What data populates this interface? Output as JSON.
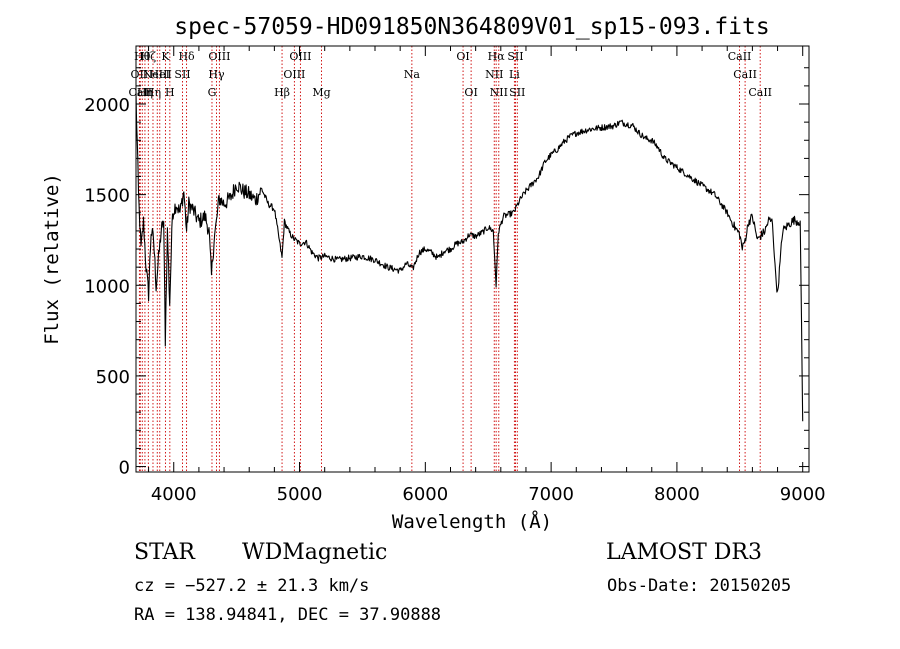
{
  "chart_data": {
    "type": "line",
    "title": "spec-57059-HD091850N364809V01_sp15-093.fits",
    "xlabel": "Wavelength (Å)",
    "ylabel": "Flux (relative)",
    "xlim": [
      3700,
      9050
    ],
    "ylim": [
      -30,
      2320
    ],
    "xticks": [
      4000,
      5000,
      6000,
      7000,
      8000,
      9000
    ],
    "yticks": [
      0,
      500,
      1000,
      1500,
      2000
    ],
    "grid": false,
    "series": [
      {
        "x": [
          3700,
          3720,
          3740,
          3760,
          3780,
          3800,
          3820,
          3840,
          3860,
          3880,
          3900,
          3920,
          3933,
          3950,
          3968,
          3990,
          4020,
          4050,
          4080,
          4102,
          4120,
          4150,
          4200,
          4250,
          4280,
          4300,
          4320,
          4340,
          4360,
          4400,
          4450,
          4500,
          4550,
          4600,
          4650,
          4700,
          4750,
          4800,
          4861,
          4880,
          4920,
          4950,
          5000,
          5050,
          5100,
          5150,
          5200,
          5300,
          5400,
          5500,
          5600,
          5700,
          5800,
          5850,
          5900,
          5950,
          6000,
          6050,
          6100,
          6150,
          6200,
          6250,
          6300,
          6350,
          6400,
          6450,
          6500,
          6540,
          6563,
          6580,
          6620,
          6700,
          6760,
          6800,
          6850,
          6900,
          6950,
          7000,
          7050,
          7100,
          7150,
          7200,
          7300,
          7400,
          7500,
          7550,
          7600,
          7650,
          7700,
          7750,
          7800,
          7850,
          7900,
          8000,
          8100,
          8200,
          8300,
          8400,
          8450,
          8500,
          8520,
          8542,
          8570,
          8600,
          8640,
          8662,
          8700,
          8730,
          8760,
          8780,
          8800,
          8840,
          8880,
          8930,
          8980,
          9000
        ],
        "y": [
          2050,
          1500,
          1200,
          1350,
          1100,
          950,
          1300,
          1250,
          1000,
          1150,
          1300,
          1350,
          700,
          1300,
          900,
          1400,
          1450,
          1400,
          1520,
          1300,
          1450,
          1420,
          1350,
          1380,
          1300,
          1050,
          1250,
          1350,
          1480,
          1450,
          1480,
          1560,
          1520,
          1500,
          1470,
          1530,
          1450,
          1420,
          1150,
          1350,
          1290,
          1260,
          1230,
          1240,
          1180,
          1150,
          1160,
          1140,
          1150,
          1160,
          1140,
          1100,
          1080,
          1120,
          1090,
          1180,
          1200,
          1180,
          1150,
          1190,
          1200,
          1230,
          1240,
          1280,
          1270,
          1290,
          1320,
          1300,
          1000,
          1290,
          1380,
          1400,
          1480,
          1520,
          1560,
          1600,
          1680,
          1720,
          1750,
          1790,
          1820,
          1840,
          1860,
          1870,
          1880,
          1900,
          1890,
          1880,
          1840,
          1810,
          1800,
          1760,
          1700,
          1650,
          1600,
          1550,
          1500,
          1400,
          1330,
          1280,
          1200,
          1250,
          1350,
          1380,
          1250,
          1270,
          1300,
          1360,
          1350,
          1100,
          950,
          1300,
          1330,
          1360,
          1350,
          250
        ]
      }
    ],
    "lines": [
      {
        "x": 3727,
        "label": "OII",
        "row": 1
      },
      {
        "x": 3734,
        "label": "CaII",
        "row": 2
      },
      {
        "x": 3750,
        "label": "Hθ",
        "row": 0
      },
      {
        "x": 3771,
        "label": "Hη",
        "row": 2
      },
      {
        "x": 3798,
        "label": "Hζ",
        "row": 0
      },
      {
        "x": 3835,
        "label": "Hη",
        "row": 2
      },
      {
        "x": 3869,
        "label": "NeIII",
        "row": 1
      },
      {
        "x": 3889,
        "label": "HeI",
        "row": 1
      },
      {
        "x": 3934,
        "label": "K",
        "row": 0
      },
      {
        "x": 3969,
        "label": "H",
        "row": 2
      },
      {
        "x": 4070,
        "label": "SII",
        "row": 1
      },
      {
        "x": 4102,
        "label": "Hδ",
        "row": 0
      },
      {
        "x": 4304,
        "label": "G",
        "row": 2
      },
      {
        "x": 4340,
        "label": "Hγ",
        "row": 1
      },
      {
        "x": 4363,
        "label": "OIII",
        "row": 0
      },
      {
        "x": 4861,
        "label": "Hβ",
        "row": 2
      },
      {
        "x": 4959,
        "label": "OIII",
        "row": 1
      },
      {
        "x": 5007,
        "label": "OIII",
        "row": 0
      },
      {
        "x": 5175,
        "label": "Mg",
        "row": 2
      },
      {
        "x": 5893,
        "label": "Na",
        "row": 1
      },
      {
        "x": 6300,
        "label": "OI",
        "row": 0
      },
      {
        "x": 6364,
        "label": "OI",
        "row": 2
      },
      {
        "x": 6548,
        "label": "NII",
        "row": 1
      },
      {
        "x": 6563,
        "label": "Hα",
        "row": 0
      },
      {
        "x": 6584,
        "label": "NII",
        "row": 2
      },
      {
        "x": 6708,
        "label": "Li",
        "row": 1
      },
      {
        "x": 6717,
        "label": "SII",
        "row": 0
      },
      {
        "x": 6731,
        "label": "SII",
        "row": 2
      },
      {
        "x": 8498,
        "label": "CaII",
        "row": 0
      },
      {
        "x": 8542,
        "label": "CaII",
        "row": 1
      },
      {
        "x": 8662,
        "label": "CaII",
        "row": 2
      }
    ]
  },
  "info": {
    "class": "STAR",
    "subclass": "WDMagnetic",
    "survey": "LAMOST DR3",
    "cz": "cz = −527.2 ± 21.3 km/s",
    "obsdate": "Obs-Date: 20150205",
    "radec": "RA = 138.94841, DEC =  37.90888"
  }
}
